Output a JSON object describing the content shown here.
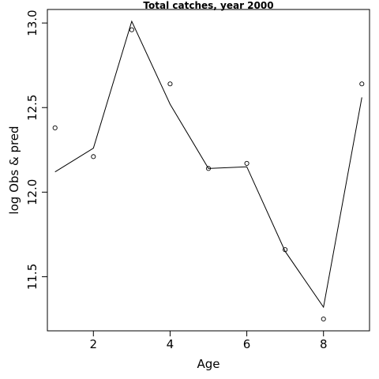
{
  "chart_data": {
    "type": "line",
    "title": "Total catches, year 2000",
    "xlabel": "Age",
    "ylabel": "log Obs & pred",
    "xlim": [
      0.8,
      9.2
    ],
    "ylim": [
      11.18,
      13.08
    ],
    "x_ticks": [
      2,
      4,
      6,
      8
    ],
    "y_ticks": [
      11.5,
      12.0,
      12.5,
      13.0
    ],
    "y_tick_labels": [
      "11.5",
      "12.0",
      "12.5",
      "13.0"
    ],
    "grid": false,
    "series": [
      {
        "role": "observed",
        "style": "points",
        "x": [
          1,
          2,
          3,
          4,
          5,
          6,
          7,
          8,
          9
        ],
        "values": [
          12.38,
          12.21,
          12.96,
          12.64,
          12.14,
          12.17,
          11.66,
          11.25,
          12.64
        ]
      },
      {
        "role": "predicted",
        "style": "line",
        "x": [
          1,
          2,
          3,
          4,
          5,
          6,
          7,
          8,
          9
        ],
        "values": [
          12.12,
          12.26,
          13.01,
          12.52,
          12.14,
          12.15,
          11.65,
          11.32,
          12.56
        ]
      }
    ]
  }
}
